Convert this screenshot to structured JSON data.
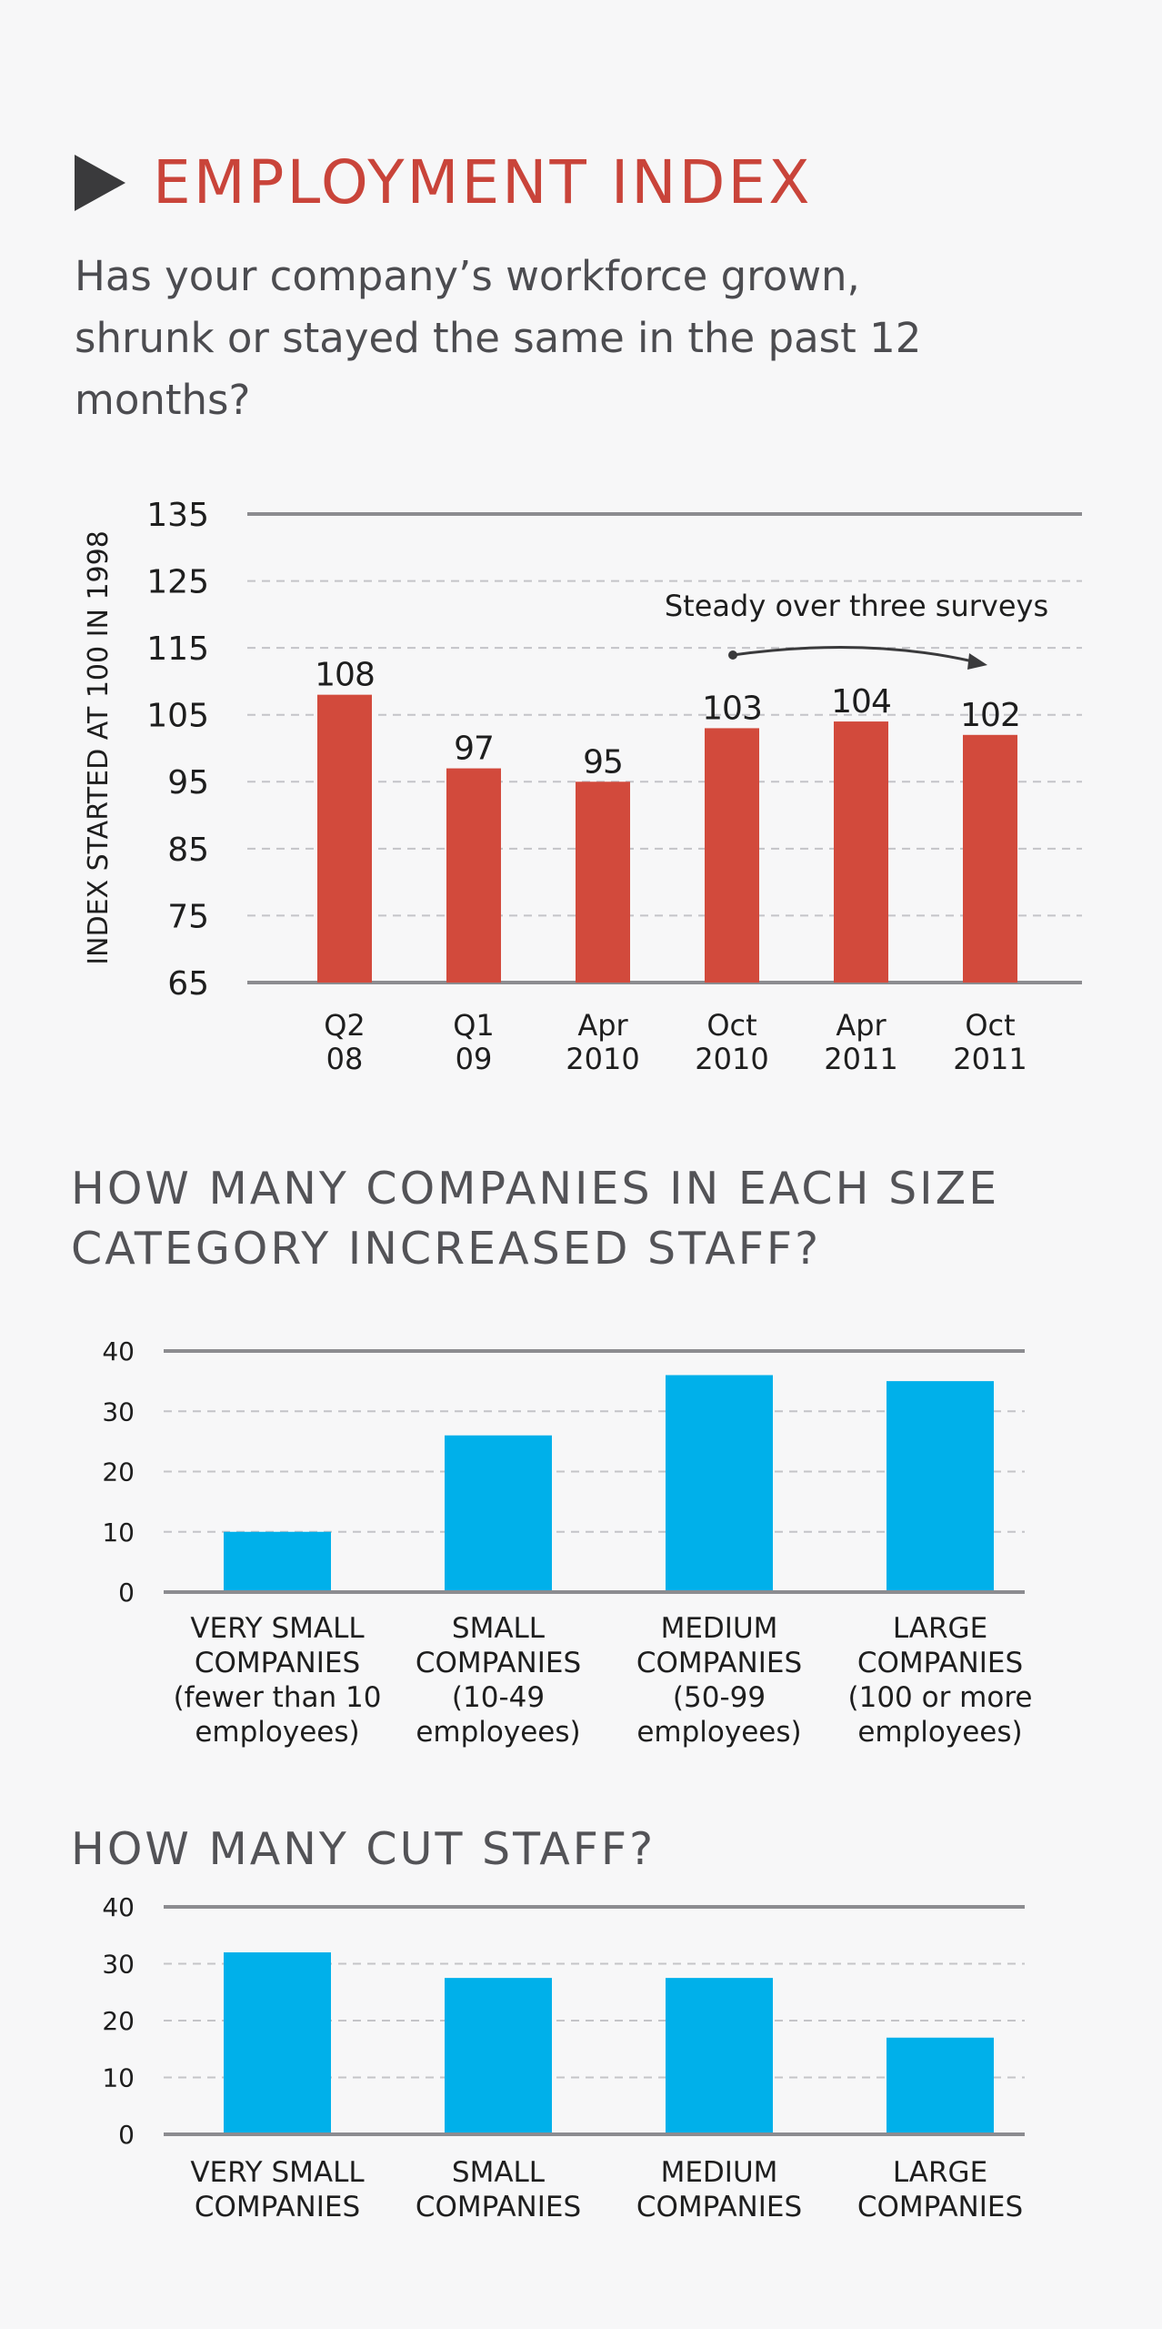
{
  "header": {
    "title": "EMPLOYMENT INDEX",
    "question": "Has your company’s workforce grown, shrunk or stayed the same in the past 12 months?"
  },
  "sections": {
    "increased_title": "HOW MANY COMPANIES IN EACH SIZE CATEGORY INCREASED STAFF?",
    "cut_title": "HOW MANY CUT STAFF?"
  },
  "colors": {
    "title": "#c9443a",
    "index_bar": "#d24a3c",
    "size_bar": "#00b0ea"
  },
  "chart_data": [
    {
      "type": "bar",
      "ylabel": "INDEX STARTED AT 100 IN 1998",
      "ylim": [
        65,
        135
      ],
      "yticks": [
        135,
        125,
        115,
        105,
        95,
        85,
        75,
        65
      ],
      "categories": [
        [
          "Q2",
          "08"
        ],
        [
          "Q1",
          "09"
        ],
        [
          "Apr",
          "2010"
        ],
        [
          "Oct",
          "2010"
        ],
        [
          "Apr",
          "2011"
        ],
        [
          "Oct",
          "2011"
        ]
      ],
      "values": [
        108,
        97,
        95,
        103,
        104,
        102
      ],
      "annotation": "Steady over three surveys",
      "grid": true
    },
    {
      "type": "bar",
      "ylim": [
        0,
        40
      ],
      "yticks": [
        40,
        30,
        20,
        10,
        0
      ],
      "categories": [
        [
          "VERY SMALL",
          "COMPANIES",
          "(fewer than 10",
          "employees)"
        ],
        [
          "SMALL",
          "COMPANIES",
          "(10-49",
          "employees)"
        ],
        [
          "MEDIUM",
          "COMPANIES",
          "(50-99",
          "employees)"
        ],
        [
          "LARGE",
          "COMPANIES",
          "(100 or more",
          "employees)"
        ]
      ],
      "values": [
        10,
        26,
        36,
        35
      ],
      "grid": true
    },
    {
      "type": "bar",
      "ylim": [
        0,
        40
      ],
      "yticks": [
        40,
        30,
        20,
        10,
        0
      ],
      "categories": [
        [
          "VERY SMALL",
          "COMPANIES"
        ],
        [
          "SMALL",
          "COMPANIES"
        ],
        [
          "MEDIUM",
          "COMPANIES"
        ],
        [
          "LARGE",
          "COMPANIES"
        ]
      ],
      "values": [
        32,
        27.5,
        27.5,
        17
      ],
      "grid": true
    }
  ]
}
